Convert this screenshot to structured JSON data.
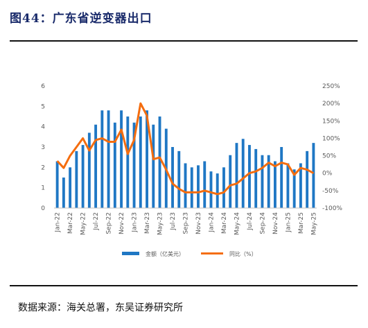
{
  "header": {
    "title": "图44：广东省逆变器出口"
  },
  "footer": {
    "source": "数据来源：海关总署，东吴证券研究所"
  },
  "colors": {
    "bars": "#1f77c4",
    "line": "#f46d0f",
    "title": "#1a2b6b"
  },
  "chart_data": {
    "type": "bar",
    "categories": [
      "Jan-22",
      "Feb-22",
      "Mar-22",
      "Apr-22",
      "May-22",
      "Jun-22",
      "Jul-22",
      "Aug-22",
      "Sep-22",
      "Oct-22",
      "Nov-22",
      "Dec-22",
      "Jan-23",
      "Feb-23",
      "Mar-23",
      "Apr-23",
      "May-23",
      "Jun-23",
      "Jul-23",
      "Aug-23",
      "Sep-23",
      "Oct-23",
      "Nov-23",
      "Dec-23",
      "Jan-24",
      "Feb-24",
      "Mar-24",
      "Apr-24",
      "May-24",
      "Jun-24",
      "Jul-24",
      "Aug-24",
      "Sep-24",
      "Oct-24",
      "Nov-24",
      "Dec-24",
      "Jan-25",
      "Feb-25",
      "Mar-25",
      "Apr-25",
      "May-25"
    ],
    "x_tick_labels": [
      "Jan-22",
      "Mar-22",
      "May-22",
      "Jul-22",
      "Sep-22",
      "Nov-22",
      "Jan-23",
      "Mar-23",
      "May-23",
      "Jul-23",
      "Sep-23",
      "Nov-23",
      "Jan-24",
      "Mar-24",
      "May-24",
      "Jul-24",
      "Sep-24",
      "Nov-24",
      "Jan-25",
      "Mar-25",
      "May-25"
    ],
    "series": [
      {
        "name": "金额（亿美元）",
        "type": "bar",
        "axis": "left",
        "values": [
          2.3,
          1.5,
          2.0,
          2.8,
          3.1,
          3.7,
          4.1,
          4.8,
          4.8,
          4.2,
          4.8,
          4.5,
          4.2,
          4.5,
          4.8,
          4.1,
          4.5,
          3.9,
          3.0,
          2.8,
          2.2,
          2.0,
          2.1,
          2.3,
          1.8,
          1.7,
          2.0,
          2.6,
          3.2,
          3.4,
          3.1,
          2.9,
          2.6,
          2.6,
          2.3,
          3.0,
          2.2,
          1.9,
          2.2,
          2.8,
          3.2
        ]
      },
      {
        "name": "同比（%）",
        "type": "line",
        "axis": "right",
        "values": [
          35,
          15,
          50,
          75,
          100,
          65,
          95,
          100,
          90,
          90,
          125,
          55,
          95,
          200,
          165,
          40,
          45,
          10,
          -30,
          -45,
          -55,
          -55,
          -55,
          -50,
          -55,
          -60,
          -55,
          -35,
          -30,
          -15,
          0,
          5,
          15,
          30,
          20,
          30,
          25,
          -5,
          15,
          10,
          0
        ]
      }
    ],
    "ylim_left": [
      0,
      6
    ],
    "yticks_left": [
      0,
      1,
      2,
      3,
      4,
      5,
      6
    ],
    "ylim_right": [
      -100,
      250
    ],
    "yticks_right": [
      "250%",
      "200%",
      "150%",
      "100%",
      "50%",
      "0%",
      "-50%",
      "-100%"
    ],
    "legend_position": "bottom",
    "grid": false
  }
}
